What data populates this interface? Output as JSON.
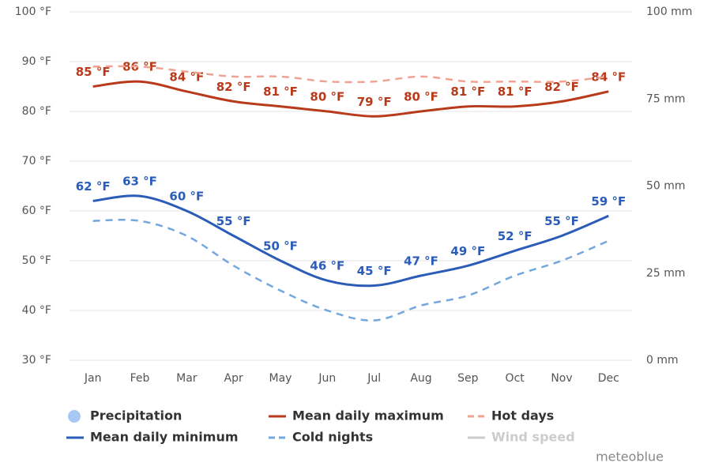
{
  "chart_data": {
    "type": "line",
    "categories": [
      "Jan",
      "Feb",
      "Mar",
      "Apr",
      "May",
      "Jun",
      "Jul",
      "Aug",
      "Sep",
      "Oct",
      "Nov",
      "Dec"
    ],
    "ylim": [
      30,
      100
    ],
    "yticks": [
      {
        "value": 30,
        "label": "30 °F"
      },
      {
        "value": 40,
        "label": "40 °F"
      },
      {
        "value": 50,
        "label": "50 °F"
      },
      {
        "value": 60,
        "label": "60 °F"
      },
      {
        "value": 70,
        "label": "70 °F"
      },
      {
        "value": 80,
        "label": "80 °F"
      },
      {
        "value": 90,
        "label": "90 °F"
      },
      {
        "value": 100,
        "label": "100 °F"
      }
    ],
    "y2lim": [
      0,
      100
    ],
    "y2ticks": [
      {
        "value": 0,
        "label": "0 mm"
      },
      {
        "value": 25,
        "label": "25 mm"
      },
      {
        "value": 50,
        "label": "50 mm"
      },
      {
        "value": 75,
        "label": "75 mm"
      },
      {
        "value": 100,
        "label": "100 mm"
      }
    ],
    "grid": true,
    "series": [
      {
        "name": "Mean daily maximum",
        "color": "#b93a1b",
        "dash": false,
        "values": [
          85,
          86,
          84,
          82,
          81,
          80,
          79,
          80,
          81,
          81,
          82,
          84
        ],
        "value_labels": [
          "85 °F",
          "86 °F",
          "84 °F",
          "82 °F",
          "81 °F",
          "80 °F",
          "79 °F",
          "80 °F",
          "81 °F",
          "81 °F",
          "82 °F",
          "84 °F"
        ]
      },
      {
        "name": "Hot days",
        "color": "#f0a393",
        "dash": true,
        "values": [
          89,
          89,
          88,
          87,
          87,
          86,
          86,
          87,
          86,
          86,
          86,
          87
        ]
      },
      {
        "name": "Mean daily minimum",
        "color": "#2b5cb8",
        "dash": false,
        "values": [
          62,
          63,
          60,
          55,
          50,
          46,
          45,
          47,
          49,
          52,
          55,
          59
        ],
        "value_labels": [
          "62 °F",
          "63 °F",
          "60 °F",
          "55 °F",
          "50 °F",
          "46 °F",
          "45 °F",
          "47 °F",
          "49 °F",
          "52 °F",
          "55 °F",
          "59 °F"
        ]
      },
      {
        "name": "Cold nights",
        "color": "#72a8dd",
        "dash": true,
        "values": [
          58,
          58,
          55,
          49,
          44,
          40,
          38,
          41,
          43,
          47,
          50,
          54
        ]
      }
    ],
    "legend_extra": [
      {
        "name": "Precipitation",
        "color": "#a6c8f2",
        "marker": "circle"
      },
      {
        "name": "Wind speed",
        "color": "#cccccc",
        "marker": "line"
      }
    ],
    "credit": "meteoblue"
  }
}
